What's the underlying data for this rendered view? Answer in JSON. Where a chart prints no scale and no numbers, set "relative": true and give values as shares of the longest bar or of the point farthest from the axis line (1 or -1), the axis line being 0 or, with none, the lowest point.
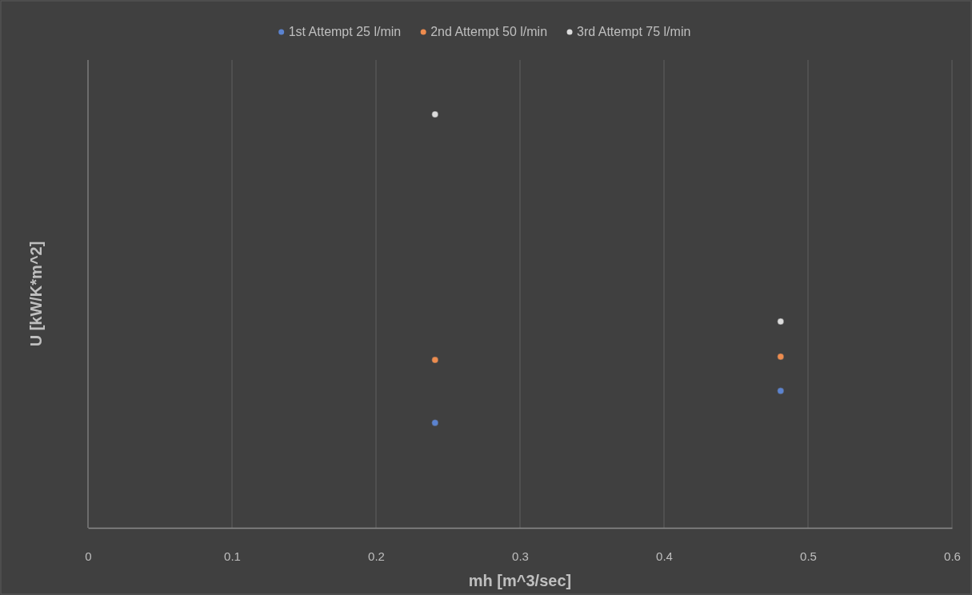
{
  "chart_data": {
    "type": "scatter",
    "xlabel": "mh [m^3/sec]",
    "ylabel": "U [kW/K*m^2]",
    "relative": true,
    "xlim": [
      0,
      0.6
    ],
    "xticks": [
      0,
      0.1,
      0.2,
      0.3,
      0.4,
      0.5,
      0.6
    ],
    "grid": "x",
    "legend": "top",
    "marker": "circle",
    "x": [
      0.241,
      0.481
    ],
    "series": [
      {
        "name": "1st Attempt 25 l/min",
        "color": "#5b83d0",
        "values": [
          0.254,
          0.331
        ]
      },
      {
        "name": "2nd Attempt 50 l/min",
        "color": "#ee8c4e",
        "values": [
          0.406,
          0.414
        ]
      },
      {
        "name": "3rd Attempt 75 l/min",
        "color": "#dcdcdc",
        "values": [
          1,
          0.499
        ]
      }
    ]
  }
}
